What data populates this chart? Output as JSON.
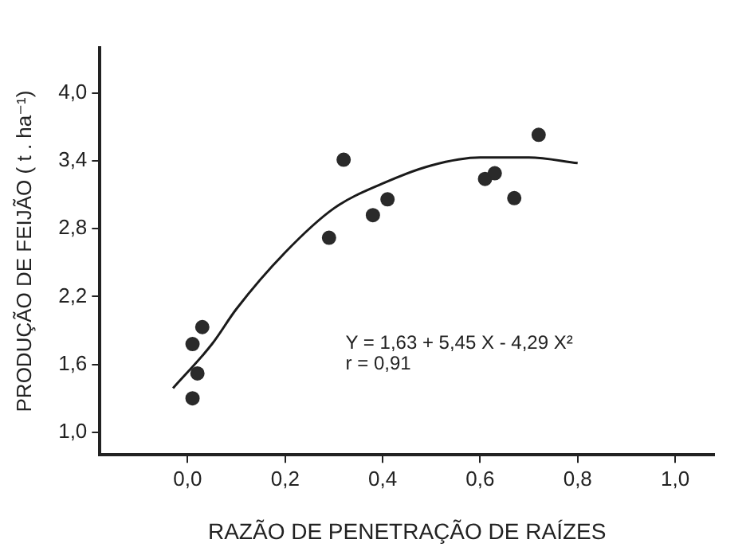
{
  "chart_data": {
    "type": "scatter",
    "xlabel": "RAZÃO DE PENETRAÇÃO DE RAÍZES",
    "ylabel": "PRODUÇÃO DE FEIJÃO ( t . ha⁻¹)",
    "annotations": [
      "Y = 1,63 + 5,45 X - 4,29 X²",
      "r = 0,91"
    ],
    "xlim": [
      -0.18,
      1.08
    ],
    "ylim": [
      0.8,
      4.4
    ],
    "xticks": [
      {
        "value": 0,
        "label": "0,0"
      },
      {
        "value": 0.2,
        "label": "0,2"
      },
      {
        "value": 0.4,
        "label": "0,4"
      },
      {
        "value": 0.6,
        "label": "0,6"
      },
      {
        "value": 0.8,
        "label": "0,8"
      },
      {
        "value": 1,
        "label": "1,0"
      }
    ],
    "yticks": [
      {
        "value": 1,
        "label": "1,0"
      },
      {
        "value": 1.6,
        "label": "1,6"
      },
      {
        "value": 2.2,
        "label": "2,2"
      },
      {
        "value": 2.8,
        "label": "2,8"
      },
      {
        "value": 3.4,
        "label": "3,4"
      },
      {
        "value": 4,
        "label": "4,0"
      }
    ],
    "grid": false,
    "legend": false,
    "marker": "circle",
    "series": [
      {
        "color": "#2a2a2a",
        "x": [
          0.01,
          0.02,
          0.03,
          0.01,
          0.29,
          0.32,
          0.38,
          0.41,
          0.61,
          0.63,
          0.67,
          0.72
        ],
        "values": [
          1.78,
          1.52,
          1.93,
          1.3,
          2.72,
          3.41,
          2.92,
          3.06,
          3.24,
          3.29,
          3.07,
          3.63
        ]
      },
      {
        "type": "line",
        "color": "#1a1a1a",
        "marker": "none",
        "x": [
          -0.03,
          0.05,
          0.1,
          0.2,
          0.3,
          0.4,
          0.5,
          0.6,
          0.7,
          0.8
        ],
        "values": [
          1.39,
          1.78,
          2.09,
          2.59,
          2.98,
          3.2,
          3.36,
          3.43,
          3.43,
          3.38
        ]
      }
    ]
  }
}
